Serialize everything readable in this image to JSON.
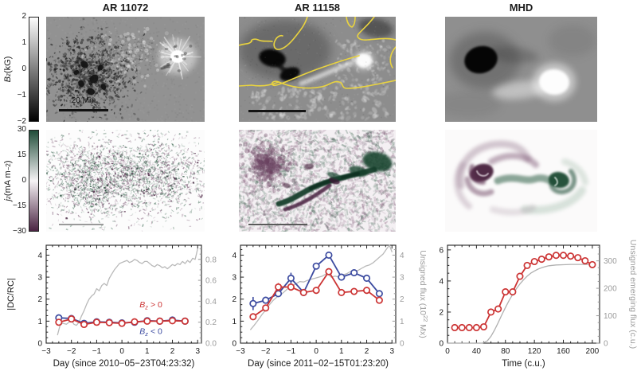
{
  "titles": [
    "AR 11072",
    "AR 11158",
    "MHD"
  ],
  "colorbars": [
    {
      "var": "B",
      "sub": "z",
      "unit_pre": " (kG)",
      "unit_sup": "",
      "unit_post": "",
      "ticks": [
        "2",
        "1",
        "0",
        "−1",
        "−2"
      ],
      "gradient": [
        "#ffffff",
        "#7f7f7f",
        "#000000"
      ]
    },
    {
      "var": "j",
      "sub": "z",
      "unit_pre": " (mA m",
      "unit_sup": "−2",
      "unit_post": ")",
      "ticks": [
        "30",
        "15",
        "0",
        "−15",
        "−30"
      ],
      "gradient": [
        "#1c4a36",
        "#f6f3f5",
        "#47203f"
      ]
    }
  ],
  "scale_bar_label": "20 Mm",
  "colors": {
    "red": "#cc3434",
    "blue": "#3c4ba0",
    "gray": "#b9b9b9",
    "contour_yellow": "#e9d33f",
    "axis_gray": "#9b9b9b",
    "jz_green": "#1d4a33",
    "jz_purple": "#47203f"
  },
  "chart_data": [
    {
      "type": "line",
      "xlabel": "Day (since 2010−05−23T04:23:32)",
      "ylabel_left": "|DC/RC|",
      "xlim": [
        -3,
        3.15
      ],
      "ylim_left": [
        0,
        4.45
      ],
      "ylim_right": [
        0,
        0.935
      ],
      "xticks": [
        -3,
        -2,
        -1,
        0,
        1,
        2,
        3
      ],
      "xtick_labels": [
        "−3",
        "−2",
        "−1",
        "0",
        "1",
        "2",
        "3"
      ],
      "yticks_left": [
        0,
        1,
        2,
        3,
        4
      ],
      "ytick_labels_left": [
        "0",
        "1",
        "2",
        "3",
        "4"
      ],
      "yticks_right": [
        0,
        0.2,
        0.4,
        0.6,
        0.8
      ],
      "ytick_labels_right": [
        "0.0",
        "0.2",
        "0.4",
        "0.6",
        "0.8"
      ],
      "x_minor": 0.25,
      "yl_minor": 0.25,
      "yr_minor": 0.05,
      "series": [
        {
          "name": "unsigned flux (grey)",
          "axis": "right",
          "color": "#b9b9b9",
          "width": 1.3,
          "marker": false,
          "x": [
            -2.55,
            -2.45,
            -2.35,
            -2.2,
            -2.1,
            -2.0,
            -1.9,
            -1.8,
            -1.7,
            -1.6,
            -1.5,
            -1.4,
            -1.3,
            -1.2,
            -1.1,
            -1.0,
            -0.9,
            -0.8,
            -0.7,
            -0.6,
            -0.5,
            -0.4,
            -0.3,
            -0.2,
            -0.1,
            0.0,
            0.1,
            0.2,
            0.3,
            0.4,
            0.5,
            0.6,
            0.7,
            0.8,
            0.9,
            1.0,
            1.1,
            1.2,
            1.3,
            1.4,
            1.5,
            1.6,
            1.7,
            1.8,
            1.9,
            2.0,
            2.1,
            2.2,
            2.3,
            2.4,
            2.5,
            2.6,
            2.7,
            2.8,
            2.9,
            3.0
          ],
          "y": [
            0.08,
            0.17,
            0.19,
            0.18,
            0.2,
            0.22,
            0.18,
            0.17,
            0.2,
            0.26,
            0.31,
            0.37,
            0.42,
            0.45,
            0.47,
            0.52,
            0.5,
            0.55,
            0.57,
            0.55,
            0.62,
            0.66,
            0.7,
            0.73,
            0.76,
            0.77,
            0.78,
            0.79,
            0.77,
            0.78,
            0.8,
            0.79,
            0.77,
            0.76,
            0.78,
            0.78,
            0.76,
            0.74,
            0.73,
            0.75,
            0.74,
            0.72,
            0.73,
            0.71,
            0.73,
            0.75,
            0.74,
            0.76,
            0.75,
            0.78,
            0.76,
            0.79,
            0.77,
            0.81,
            0.8,
            0.9
          ]
        },
        {
          "name": "Bz<0",
          "axis": "left",
          "color": "#3c4ba0",
          "width": 1.8,
          "marker": true,
          "x": [
            -2.5,
            -2,
            -1.5,
            -1,
            -0.5,
            0,
            0.5,
            1,
            1.5,
            2,
            2.5
          ],
          "y": [
            1.15,
            1.12,
            0.9,
            0.97,
            0.95,
            0.92,
            0.95,
            1.02,
            1.0,
            1.05,
            1.0
          ]
        },
        {
          "name": "Bz>0",
          "axis": "left",
          "color": "#cc3434",
          "width": 1.8,
          "marker": true,
          "x": [
            -2.5,
            -2,
            -1.5,
            -1,
            -0.5,
            0,
            0.5,
            1,
            1.5,
            2,
            2.5
          ],
          "y": [
            0.95,
            1.1,
            0.85,
            0.95,
            0.93,
            0.9,
            0.97,
            1.0,
            1.0,
            1.02,
            1.0
          ]
        }
      ],
      "annotations": [
        {
          "x": 1.15,
          "y": 1.62,
          "color": "#cc3434",
          "pre": "B",
          "sub": "z",
          "rest": " > 0"
        },
        {
          "x": 1.15,
          "y": 0.42,
          "color": "#3c4ba0",
          "pre": "B",
          "sub": "z",
          "rest": " < 0"
        }
      ]
    },
    {
      "type": "line",
      "xlabel": "Day (since 2011−02−15T01:23:20)",
      "ylabel_right": {
        "pre": "Unsigned flux (10",
        "sup": "22",
        "post": " Mx)"
      },
      "xlim": [
        -3,
        3.15
      ],
      "ylim_left": [
        0,
        4.45
      ],
      "ylim_right": [
        0,
        4.45
      ],
      "xticks": [
        -3,
        -2,
        -1,
        0,
        1,
        2,
        3
      ],
      "xtick_labels": [
        "−3",
        "−2",
        "−1",
        "0",
        "1",
        "2",
        "3"
      ],
      "yticks_left": [
        0,
        1,
        2,
        3,
        4
      ],
      "ytick_labels_left": [
        "0",
        "1",
        "2",
        "3",
        "4"
      ],
      "yticks_right": [
        0,
        1,
        2,
        3,
        4
      ],
      "ytick_labels_right": [
        "0",
        "1",
        "2",
        "3",
        "4"
      ],
      "x_minor": 0.25,
      "yl_minor": 0.25,
      "yr_minor": 0.25,
      "series": [
        {
          "name": "unsigned flux (grey)",
          "axis": "right",
          "color": "#b9b9b9",
          "width": 1.3,
          "marker": false,
          "x": [
            -2.6,
            -2.45,
            -2.3,
            -2.15,
            -2.0,
            -1.85,
            -1.7,
            -1.55,
            -1.4,
            -1.25,
            -1.1,
            -0.95,
            -0.8,
            -0.65,
            -0.5,
            -0.35,
            -0.2,
            -0.05,
            0.1,
            0.25,
            0.4,
            0.5,
            0.6,
            0.75,
            0.9,
            1.05,
            1.2,
            1.35,
            1.5,
            1.65,
            1.8,
            1.95,
            2.1,
            2.25,
            2.4,
            2.55,
            2.65,
            2.8,
            2.9,
            3.0
          ],
          "y": [
            0.62,
            0.82,
            1.05,
            1.3,
            1.5,
            1.75,
            1.95,
            2.1,
            2.2,
            2.35,
            2.5,
            2.6,
            2.7,
            2.8,
            2.78,
            2.85,
            2.9,
            2.95,
            3.0,
            3.05,
            3.15,
            3.1,
            3.0,
            3.05,
            3.0,
            3.1,
            3.15,
            3.25,
            3.3,
            3.3,
            3.4,
            3.5,
            3.55,
            3.65,
            3.8,
            3.95,
            4.05,
            4.3,
            4.45,
            4.15
          ]
        },
        {
          "name": "Bz<0",
          "axis": "left",
          "color": "#3c4ba0",
          "width": 1.8,
          "marker": true,
          "x": [
            -2.5,
            -2,
            -1.5,
            -1,
            -0.5,
            0,
            0.5,
            1,
            1.5,
            2,
            2.5
          ],
          "y": [
            1.8,
            1.95,
            2.25,
            2.95,
            2.3,
            3.5,
            4.0,
            3.0,
            3.2,
            2.95,
            2.25
          ],
          "err": [
            0.3,
            0,
            0,
            0.25,
            0,
            0,
            0,
            0,
            0,
            0,
            0
          ]
        },
        {
          "name": "Bz>0",
          "axis": "left",
          "color": "#cc3434",
          "width": 1.8,
          "marker": true,
          "x": [
            -2.5,
            -2,
            -1.5,
            -1,
            -0.5,
            0,
            0.5,
            1,
            1.5,
            2,
            2.5
          ],
          "y": [
            1.2,
            1.6,
            2.55,
            2.55,
            2.3,
            2.4,
            3.25,
            2.3,
            2.35,
            2.4,
            1.95
          ],
          "err": [
            0,
            0,
            0.18,
            0.12,
            0,
            0,
            0,
            0,
            0,
            0,
            0
          ]
        }
      ],
      "annotations": []
    },
    {
      "type": "line",
      "xlabel": "Time (c.u.)",
      "ylabel_right": {
        "pre": "Unsigned emerging flux (c.u.)",
        "sup": "",
        "post": ""
      },
      "xlim": [
        0,
        210
      ],
      "ylim_left": [
        0,
        6.3
      ],
      "ylim_right": [
        0,
        357
      ],
      "xticks": [
        0,
        40,
        80,
        120,
        160,
        200
      ],
      "xtick_labels": [
        "0",
        "40",
        "80",
        "120",
        "160",
        "200"
      ],
      "yticks_left": [
        0,
        2,
        4,
        6
      ],
      "ytick_labels_left": [
        "0",
        "2",
        "4",
        "6"
      ],
      "yticks_right": [
        0,
        100,
        200,
        300
      ],
      "ytick_labels_right": [
        "0",
        "100",
        "200",
        "300"
      ],
      "x_minor": 10,
      "yl_minor": 0.5,
      "yr_minor": 25,
      "series": [
        {
          "name": "unsigned emerging flux (grey)",
          "axis": "right",
          "color": "#b0b0b0",
          "width": 1.3,
          "marker": false,
          "x": [
            0,
            10,
            20,
            30,
            40,
            48,
            55,
            60,
            65,
            70,
            75,
            80,
            85,
            90,
            95,
            100,
            105,
            110,
            115,
            120,
            125,
            130,
            135,
            140,
            150,
            160,
            170,
            180,
            190,
            200
          ],
          "y": [
            0,
            0,
            0,
            0,
            0,
            0,
            8,
            25,
            48,
            75,
            103,
            130,
            155,
            178,
            198,
            216,
            231,
            244,
            255,
            263,
            270,
            275,
            279,
            282,
            285,
            286,
            287,
            287,
            287,
            287
          ]
        },
        {
          "name": "IDC/RCI",
          "axis": "left",
          "color": "#cc3434",
          "width": 1.8,
          "marker": true,
          "x": [
            10,
            20,
            30,
            40,
            50,
            60,
            70,
            80,
            90,
            100,
            110,
            120,
            130,
            140,
            150,
            160,
            170,
            180,
            190,
            200
          ],
          "y": [
            1.0,
            1.0,
            1.0,
            1.0,
            1.05,
            2.0,
            2.2,
            3.3,
            3.3,
            4.3,
            5.0,
            5.25,
            5.4,
            5.55,
            5.65,
            5.65,
            5.6,
            5.5,
            5.3,
            5.05
          ]
        }
      ],
      "annotations": []
    }
  ]
}
